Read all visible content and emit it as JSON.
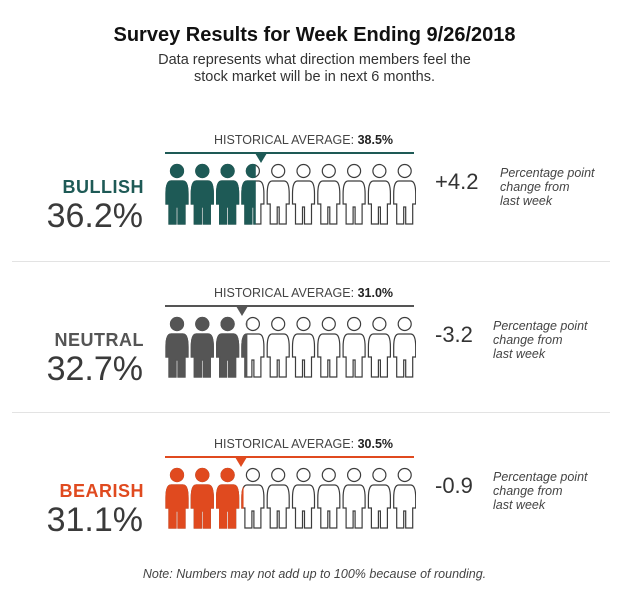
{
  "header": {
    "title": "Survey Results for Week Ending 9/26/2018",
    "subtitle_line1": "Data represents what direction members feel the",
    "subtitle_line2": "stock market will be in next 6 months."
  },
  "historical_label": "HISTORICAL AVERAGE:",
  "change_note": {
    "line1": "Percentage point",
    "line2": "change from",
    "line3": "last week"
  },
  "footnote": "Note: Numbers may not add up to 100% because of rounding.",
  "colors": {
    "bullish": "#1e5a56",
    "neutral": "#555555",
    "bearish": "#e04a1f",
    "outline": "#3c3c3c"
  },
  "chart_data": {
    "type": "pictograph",
    "icons_per_row": 10,
    "categories": [
      {
        "name": "BULLISH",
        "value": 36.2,
        "value_label": "36.2%",
        "historical_average": 38.5,
        "historical_label": "38.5%",
        "change": 4.2,
        "change_label": "+4.2"
      },
      {
        "name": "NEUTRAL",
        "value": 32.7,
        "value_label": "32.7%",
        "historical_average": 31.0,
        "historical_label": "31.0%",
        "change": -3.2,
        "change_label": "-3.2"
      },
      {
        "name": "BEARISH",
        "value": 31.1,
        "value_label": "31.1%",
        "historical_average": 30.5,
        "historical_label": "30.5%",
        "change": -0.9,
        "change_label": "-0.9"
      }
    ]
  }
}
